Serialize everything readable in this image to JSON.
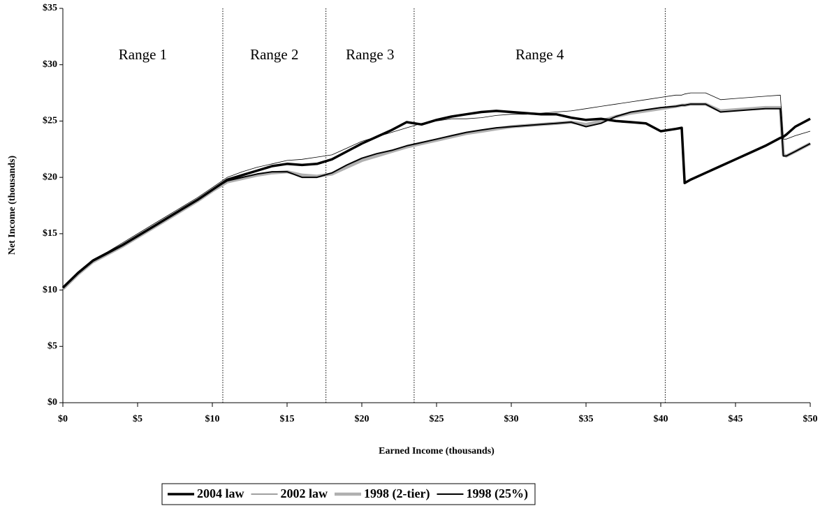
{
  "chart_data": {
    "type": "line",
    "x_label": "Earned Income (thousands)",
    "y_label": "Net Income (thousands)",
    "x": [
      0,
      1,
      2,
      3,
      4,
      5,
      6,
      7,
      8,
      9,
      10,
      11,
      12,
      13,
      14,
      15,
      16,
      17,
      18,
      19,
      20,
      21,
      22,
      23,
      24,
      25,
      26,
      27,
      28,
      29,
      30,
      31,
      32,
      33,
      34,
      35,
      36,
      37,
      38,
      39,
      40,
      41,
      41.4,
      41.6,
      42,
      43,
      44,
      45,
      46,
      47,
      48,
      48.2,
      48.4,
      49,
      50
    ],
    "series": [
      {
        "name": "2004 law",
        "color": "#000000",
        "width": 3.5,
        "values": [
          10.2,
          11.5,
          12.6,
          13.3,
          14.0,
          14.8,
          15.6,
          16.4,
          17.2,
          18.0,
          18.9,
          19.8,
          20.2,
          20.6,
          21.0,
          21.2,
          21.1,
          21.2,
          21.6,
          22.3,
          23.0,
          23.6,
          24.2,
          24.9,
          24.7,
          25.1,
          25.4,
          25.6,
          25.8,
          25.9,
          25.8,
          25.7,
          25.6,
          25.6,
          25.3,
          25.1,
          25.2,
          25.0,
          24.9,
          24.8,
          24.1,
          24.3,
          24.4,
          19.5,
          19.8,
          20.4,
          21.0,
          21.6,
          22.2,
          22.8,
          23.5,
          23.6,
          23.8,
          24.5,
          25.2
        ]
      },
      {
        "name": "2002 law",
        "color": "#000000",
        "width": 0.8,
        "values": [
          10.2,
          11.6,
          12.7,
          13.4,
          14.2,
          15.0,
          15.8,
          16.6,
          17.4,
          18.2,
          19.1,
          20.0,
          20.5,
          20.9,
          21.2,
          21.5,
          21.6,
          21.8,
          22.0,
          22.6,
          23.2,
          23.6,
          24.0,
          24.4,
          24.8,
          25.0,
          25.2,
          25.2,
          25.3,
          25.5,
          25.6,
          25.6,
          25.7,
          25.8,
          25.9,
          26.1,
          26.3,
          26.5,
          26.7,
          26.9,
          27.1,
          27.3,
          27.3,
          27.4,
          27.5,
          27.5,
          26.9,
          27.0,
          27.1,
          27.2,
          27.3,
          23.4,
          23.4,
          23.7,
          24.1
        ]
      },
      {
        "name": "1998 (2-tier)",
        "color": "#b0b0b0",
        "width": 4.5,
        "values": [
          10.1,
          11.4,
          12.5,
          13.2,
          13.9,
          14.7,
          15.5,
          16.3,
          17.1,
          17.9,
          18.8,
          19.6,
          19.9,
          20.2,
          20.4,
          20.5,
          20.2,
          20.1,
          20.3,
          20.9,
          21.5,
          21.9,
          22.3,
          22.7,
          23.0,
          23.3,
          23.6,
          23.9,
          24.1,
          24.3,
          24.5,
          24.6,
          24.7,
          24.8,
          24.9,
          24.7,
          25.0,
          25.4,
          25.7,
          25.9,
          26.1,
          26.3,
          26.4,
          26.4,
          26.5,
          26.5,
          25.9,
          26.0,
          26.1,
          26.2,
          26.2,
          22.0,
          21.9,
          22.3,
          23.0
        ]
      },
      {
        "name": "1998 (25%)",
        "color": "#000000",
        "width": 2,
        "values": [
          10.2,
          11.5,
          12.6,
          13.3,
          14.0,
          14.8,
          15.6,
          16.4,
          17.2,
          18.0,
          18.9,
          19.7,
          20.0,
          20.3,
          20.5,
          20.5,
          20.0,
          20.0,
          20.4,
          21.1,
          21.7,
          22.1,
          22.4,
          22.8,
          23.1,
          23.4,
          23.7,
          24.0,
          24.2,
          24.4,
          24.5,
          24.6,
          24.7,
          24.8,
          24.9,
          24.5,
          24.8,
          25.4,
          25.8,
          26.0,
          26.2,
          26.3,
          26.4,
          26.4,
          26.5,
          26.5,
          25.8,
          25.9,
          26.0,
          26.1,
          26.1,
          21.9,
          21.9,
          22.3,
          23.0
        ]
      }
    ],
    "xlim": [
      0,
      50
    ],
    "ylim": [
      0,
      35
    ],
    "xticks": [
      {
        "value": 0,
        "label": "$0"
      },
      {
        "value": 5,
        "label": "$5"
      },
      {
        "value": 10,
        "label": "$10"
      },
      {
        "value": 15,
        "label": "$15"
      },
      {
        "value": 20,
        "label": "$20"
      },
      {
        "value": 25,
        "label": "$25"
      },
      {
        "value": 30,
        "label": "$30"
      },
      {
        "value": 35,
        "label": "$35"
      },
      {
        "value": 40,
        "label": "$40"
      },
      {
        "value": 45,
        "label": "$45"
      },
      {
        "value": 50,
        "label": "$50"
      }
    ],
    "yticks": [
      {
        "value": 0,
        "label": "$0"
      },
      {
        "value": 5,
        "label": "$5"
      },
      {
        "value": 10,
        "label": "$10"
      },
      {
        "value": 15,
        "label": "$15"
      },
      {
        "value": 20,
        "label": "$20"
      },
      {
        "value": 25,
        "label": "$25"
      },
      {
        "value": 30,
        "label": "$30"
      },
      {
        "value": 35,
        "label": "$35"
      }
    ],
    "vlines": [
      10.7,
      17.6,
      23.5,
      40.3
    ],
    "annotations": [
      "Range 1",
      "Range 2",
      "Range 3",
      "Range 4"
    ],
    "legend": "bottom"
  }
}
